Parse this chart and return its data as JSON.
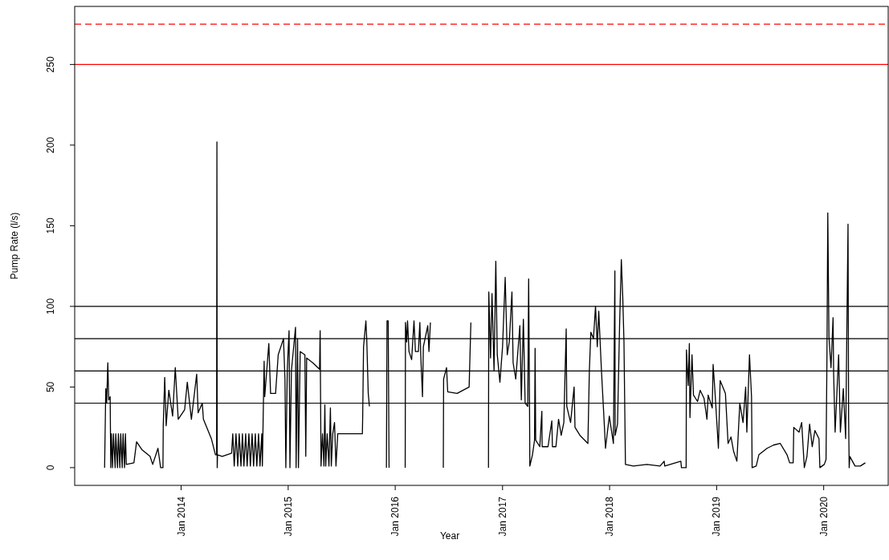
{
  "chart_data": {
    "type": "line",
    "xlabel": "Year",
    "ylabel": "Pump Rate (l/s)",
    "xlim": [
      "2013-01-03",
      "2020-08-08"
    ],
    "ylim": [
      -11,
      286
    ],
    "xticks": [
      {
        "value": "2014-01-01",
        "label": "Jan 2014"
      },
      {
        "value": "2015-01-01",
        "label": "Jan 2015"
      },
      {
        "value": "2016-01-01",
        "label": "Jan 2016"
      },
      {
        "value": "2017-01-01",
        "label": "Jan 2017"
      },
      {
        "value": "2018-01-01",
        "label": "Jan 2018"
      },
      {
        "value": "2019-01-01",
        "label": "Jan 2019"
      },
      {
        "value": "2020-01-01",
        "label": "Jan 2020"
      }
    ],
    "yticks": [
      0,
      50,
      100,
      150,
      200,
      250
    ],
    "grid": false,
    "line_style": "solid",
    "marker": "none",
    "ref_lines": [
      {
        "axis": "y",
        "value": 275,
        "color": "#ff0000",
        "line_style": "dashed"
      },
      {
        "axis": "y",
        "value": 250,
        "color": "#ff0000",
        "line_style": "solid"
      },
      {
        "axis": "y",
        "value": 100,
        "color": "#000000",
        "line_style": "solid"
      },
      {
        "axis": "y",
        "value": 80,
        "color": "#000000",
        "line_style": "solid"
      },
      {
        "axis": "y",
        "value": 60,
        "color": "#000000",
        "line_style": "solid"
      },
      {
        "axis": "y",
        "value": 40,
        "color": "#000000",
        "line_style": "solid"
      }
    ],
    "series": [
      {
        "color": "#000000",
        "x": [
          "2013-04-15",
          "2013-04-19",
          "2013-04-22",
          "2013-04-26",
          "2013-04-29",
          "2013-05-04",
          "2013-05-06",
          "2013-05-08",
          "2013-05-12",
          "2013-05-15",
          "2013-05-21",
          "2013-05-23",
          "2013-05-29",
          "2013-06-01",
          "2013-06-06",
          "2013-06-09",
          "2013-06-14",
          "2013-06-17",
          "2013-06-22",
          "2013-06-25",
          "2013-06-28",
          "2013-07-24",
          "2013-08-02",
          "2013-08-21",
          "2013-09-17",
          "2013-09-26",
          "2013-10-14",
          "2013-10-23",
          "2013-10-31",
          "2013-11-01",
          "2013-11-06",
          "2013-11-11",
          "2013-11-20",
          "2013-12-03",
          "2013-12-12",
          "2013-12-22",
          "2014-01-13",
          "2014-01-22",
          "2014-02-05",
          "2014-02-23",
          "2014-02-28",
          "2014-03-14",
          "2014-03-18",
          "2014-04-14",
          "2014-04-28",
          "2014-05-02",
          "2014-05-03",
          "2014-05-04",
          "2014-05-05",
          "2014-05-21",
          "2014-06-22",
          "2014-06-26",
          "2014-07-01",
          "2014-07-07",
          "2014-07-13",
          "2014-07-18",
          "2014-07-24",
          "2014-07-29",
          "2014-08-03",
          "2014-08-09",
          "2014-08-14",
          "2014-08-20",
          "2014-08-25",
          "2014-08-31",
          "2014-09-05",
          "2014-09-11",
          "2014-09-16",
          "2014-09-22",
          "2014-09-27",
          "2014-10-03",
          "2014-10-05",
          "2014-10-09",
          "2014-10-11",
          "2014-10-13",
          "2014-10-27",
          "2014-11-02",
          "2014-11-19",
          "2014-11-28",
          "2014-12-16",
          "2014-12-21",
          "2014-12-24",
          "2014-12-29",
          "2015-01-04",
          "2015-01-07",
          "2015-01-12",
          "2015-01-26",
          "2015-01-28",
          "2015-02-02",
          "2015-02-05",
          "2015-02-11",
          "2015-02-27",
          "2015-03-02",
          "2015-03-05",
          "2015-03-26",
          "2015-04-18",
          "2015-04-20",
          "2015-04-23",
          "2015-04-28",
          "2015-05-03",
          "2015-05-06",
          "2015-05-09",
          "2015-05-14",
          "2015-05-20",
          "2015-05-25",
          "2015-05-28",
          "2015-06-02",
          "2015-06-08",
          "2015-06-13",
          "2015-06-19",
          "2015-09-11",
          "2015-09-12",
          "2015-09-15",
          "2015-09-23",
          "2015-09-26",
          "2015-10-01",
          "2015-10-05",
          "2015-10-06",
          "2015-12-02",
          "2015-12-04",
          "2015-12-08",
          "2015-12-11",
          "2015-12-12",
          "2016-02-04",
          "2016-02-05",
          "2016-02-09",
          "2016-02-12",
          "2016-02-17",
          "2016-02-26",
          "2016-03-05",
          "2016-03-10",
          "2016-03-20",
          "2016-03-25",
          "2016-03-28",
          "2016-04-03",
          "2016-04-06",
          "2016-04-21",
          "2016-04-25",
          "2016-04-30",
          "2016-05-01",
          "2016-06-13",
          "2016-06-14",
          "2016-06-24",
          "2016-06-28",
          "2016-07-30",
          "2016-09-09",
          "2016-09-15",
          "2016-09-16",
          "2016-11-14",
          "2016-11-15",
          "2016-11-21",
          "2016-11-26",
          "2016-12-03",
          "2016-12-09",
          "2016-12-14",
          "2016-12-23",
          "2017-01-01",
          "2017-01-10",
          "2017-01-17",
          "2017-01-24",
          "2017-02-02",
          "2017-02-06",
          "2017-02-15",
          "2017-03-01",
          "2017-03-06",
          "2017-03-13",
          "2017-03-19",
          "2017-03-28",
          "2017-03-31",
          "2017-04-03",
          "2017-04-04",
          "2017-04-13",
          "2017-04-20",
          "2017-04-22",
          "2017-04-24",
          "2017-05-08",
          "2017-05-15",
          "2017-05-16",
          "2017-06-05",
          "2017-06-18",
          "2017-06-20",
          "2017-07-02",
          "2017-07-11",
          "2017-07-20",
          "2017-07-29",
          "2017-08-06",
          "2017-08-08",
          "2017-08-21",
          "2017-09-02",
          "2017-09-05",
          "2017-09-22",
          "2017-10-19",
          "2017-10-24",
          "2017-10-29",
          "2017-11-07",
          "2017-11-14",
          "2017-11-20",
          "2017-11-25",
          "2017-12-04",
          "2017-12-13",
          "2017-12-18",
          "2017-12-31",
          "2018-01-14",
          "2018-01-19",
          "2018-01-20",
          "2018-01-28",
          "2018-02-04",
          "2018-02-10",
          "2018-02-15",
          "2018-02-19",
          "2018-02-24",
          "2018-03-23",
          "2018-05-08",
          "2018-06-22",
          "2018-07-06",
          "2018-07-08",
          "2018-09-01",
          "2018-09-03",
          "2018-09-19",
          "2018-09-20",
          "2018-09-26",
          "2018-09-30",
          "2018-10-02",
          "2018-10-09",
          "2018-10-14",
          "2018-10-28",
          "2018-11-06",
          "2018-11-19",
          "2018-11-29",
          "2018-12-03",
          "2018-12-17",
          "2018-12-20",
          "2018-12-26",
          "2019-01-07",
          "2019-01-13",
          "2019-01-31",
          "2019-02-09",
          "2019-02-19",
          "2019-02-28",
          "2019-03-11",
          "2019-03-21",
          "2019-04-01",
          "2019-04-10",
          "2019-04-14",
          "2019-04-23",
          "2019-04-30",
          "2019-05-02",
          "2019-05-16",
          "2019-05-25",
          "2019-06-22",
          "2019-07-14",
          "2019-08-06",
          "2019-08-29",
          "2019-09-07",
          "2019-09-19",
          "2019-09-21",
          "2019-10-09",
          "2019-10-18",
          "2019-10-27",
          "2019-11-05",
          "2019-11-14",
          "2019-11-23",
          "2019-12-02",
          "2019-12-16",
          "2019-12-19",
          "2020-01-03",
          "2020-01-09",
          "2020-01-12",
          "2020-01-15",
          "2020-01-19",
          "2020-01-26",
          "2020-02-02",
          "2020-02-04",
          "2020-02-09",
          "2020-02-21",
          "2020-02-27",
          "2020-03-08",
          "2020-03-16",
          "2020-03-24",
          "2020-03-26",
          "2020-03-28",
          "2020-03-30",
          "2020-04-17",
          "2020-05-05",
          "2020-05-22"
        ],
        "values": [
          0,
          49,
          40,
          65,
          42,
          44,
          0,
          21,
          0,
          21,
          0,
          21,
          0,
          21,
          0,
          21,
          0,
          21,
          0,
          21,
          2,
          3,
          16,
          11,
          7,
          2,
          12,
          0,
          0,
          26,
          56,
          26,
          48,
          32,
          62,
          30,
          36,
          53,
          30,
          58,
          34,
          40,
          30,
          18,
          8,
          8,
          202,
          0,
          8,
          7,
          9,
          21,
          1,
          21,
          1,
          21,
          1,
          21,
          1,
          21,
          1,
          21,
          1,
          21,
          1,
          21,
          1,
          21,
          1,
          21,
          1,
          45,
          66,
          44,
          77,
          46,
          46,
          70,
          80,
          55,
          0,
          61,
          85,
          0,
          60,
          87,
          0,
          80,
          0,
          72,
          70,
          7,
          68,
          65,
          61,
          85,
          1,
          21,
          1,
          39,
          1,
          21,
          1,
          37,
          1,
          21,
          28,
          1,
          21,
          21,
          31,
          75,
          91,
          79,
          46,
          38,
          null,
          0,
          91,
          91,
          0,
          null,
          0,
          90,
          78,
          91,
          72,
          67,
          91,
          72,
          72,
          90,
          70,
          44,
          75,
          88,
          72,
          90,
          null,
          0,
          55,
          62,
          47,
          46,
          50,
          90,
          null,
          0,
          109,
          68,
          108,
          60,
          128,
          70,
          53,
          75,
          118,
          70,
          78,
          109,
          65,
          55,
          88,
          42,
          92,
          40,
          38,
          117,
          38,
          1,
          8,
          17,
          74,
          17,
          13,
          35,
          13,
          13,
          29,
          13,
          13,
          30,
          20,
          28,
          86,
          38,
          28,
          50,
          25,
          20,
          15,
          60,
          84,
          80,
          100,
          75,
          97,
          61,
          30,
          12,
          32,
          15,
          122,
          20,
          27,
          88,
          129,
          105,
          78,
          2,
          1,
          2,
          1,
          4,
          1,
          4,
          0,
          0,
          73,
          51,
          77,
          31,
          70,
          45,
          41,
          48,
          43,
          30,
          45,
          37,
          64,
          48,
          12,
          54,
          46,
          15,
          19,
          10,
          4,
          40,
          28,
          50,
          22,
          70,
          44,
          0,
          1,
          8,
          12,
          14,
          15,
          8,
          3,
          3,
          25,
          22,
          28,
          0,
          7,
          27,
          13,
          23,
          18,
          0,
          2,
          5,
          65,
          158,
          81,
          62,
          93,
          58,
          22,
          70,
          22,
          49,
          18,
          151,
          31,
          0,
          7,
          1,
          1,
          3
        ]
      }
    ]
  }
}
